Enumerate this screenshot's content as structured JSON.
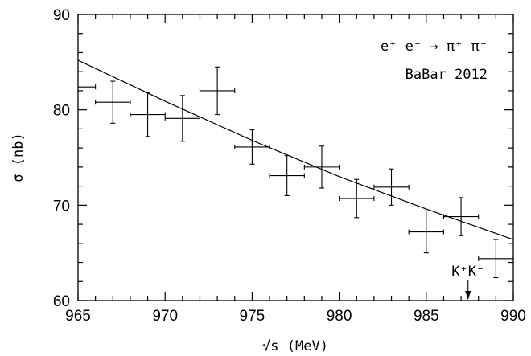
{
  "chart_data": {
    "type": "scatter",
    "xlabel": "√s (MeV)",
    "ylabel": "σ (nb)",
    "xlim": [
      965,
      990
    ],
    "ylim": [
      60,
      90
    ],
    "x_ticks": [
      965,
      970,
      975,
      980,
      985,
      990
    ],
    "y_ticks": [
      60,
      70,
      80,
      90
    ],
    "annotations": {
      "process": "e⁺ e⁻ → π⁺ π⁻",
      "experiment": "BaBar 2012",
      "threshold_label": "K⁺K⁻",
      "threshold_x": 987.4
    },
    "points": [
      {
        "x": 965,
        "y": 82.4,
        "xerr": 1,
        "yerr": 0
      },
      {
        "x": 967,
        "y": 80.8,
        "xerr": 1,
        "yerr": 2.2
      },
      {
        "x": 969,
        "y": 79.5,
        "xerr": 1,
        "yerr": 2.3
      },
      {
        "x": 971,
        "y": 79.1,
        "xerr": 1,
        "yerr": 2.4
      },
      {
        "x": 973,
        "y": 82.0,
        "xerr": 1,
        "yerr": 2.5
      },
      {
        "x": 975,
        "y": 76.1,
        "xerr": 1,
        "yerr": 1.8
      },
      {
        "x": 977,
        "y": 73.1,
        "xerr": 1,
        "yerr": 2.1
      },
      {
        "x": 979,
        "y": 74.0,
        "xerr": 1,
        "yerr": 2.2
      },
      {
        "x": 981,
        "y": 70.7,
        "xerr": 1,
        "yerr": 2.0
      },
      {
        "x": 983,
        "y": 71.9,
        "xerr": 1,
        "yerr": 1.9
      },
      {
        "x": 985,
        "y": 67.2,
        "xerr": 1,
        "yerr": 2.2
      },
      {
        "x": 987,
        "y": 68.8,
        "xerr": 1,
        "yerr": 2.0
      },
      {
        "x": 989,
        "y": 64.4,
        "xerr": 1,
        "yerr": 2.0
      }
    ],
    "fit_curve": [
      {
        "x": 965,
        "y": 85.2
      },
      {
        "x": 970,
        "y": 80.9
      },
      {
        "x": 975,
        "y": 76.8
      },
      {
        "x": 980,
        "y": 73.0
      },
      {
        "x": 985,
        "y": 69.6
      },
      {
        "x": 990,
        "y": 66.4
      }
    ]
  }
}
